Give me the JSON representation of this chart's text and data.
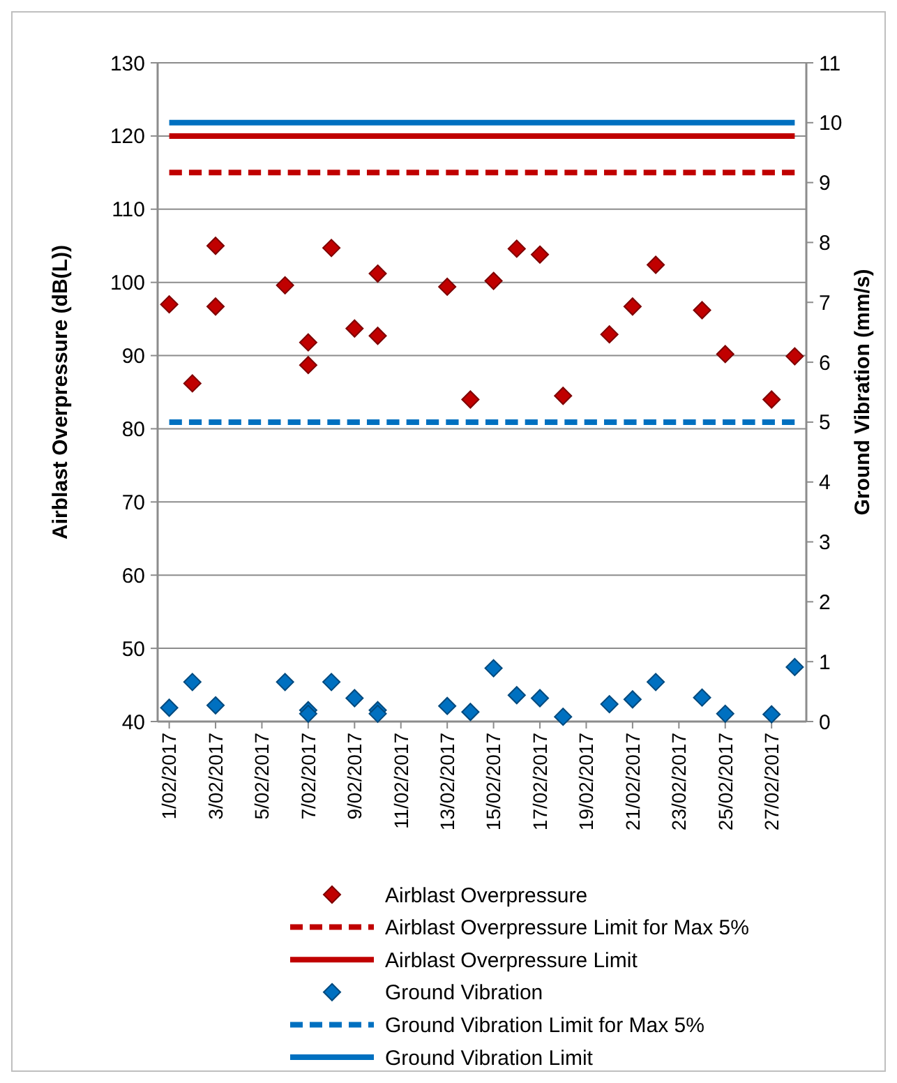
{
  "chart_data": {
    "type": "scatter",
    "ylabel": "Airblast Overpressure (dB(L))",
    "y2label": "Ground Vibration (mm/s)",
    "xlim": [
      "2017-01-31T12:00",
      "2017-02-28T12:00"
    ],
    "xticks": [
      {
        "value": "2017-02-01",
        "label": "1/02/2017"
      },
      {
        "value": "2017-02-03",
        "label": "3/02/2017"
      },
      {
        "value": "2017-02-05",
        "label": "5/02/2017"
      },
      {
        "value": "2017-02-07",
        "label": "7/02/2017"
      },
      {
        "value": "2017-02-09",
        "label": "9/02/2017"
      },
      {
        "value": "2017-02-11",
        "label": "11/02/2017"
      },
      {
        "value": "2017-02-13",
        "label": "13/02/2017"
      },
      {
        "value": "2017-02-15",
        "label": "15/02/2017"
      },
      {
        "value": "2017-02-17",
        "label": "17/02/2017"
      },
      {
        "value": "2017-02-19",
        "label": "19/02/2017"
      },
      {
        "value": "2017-02-21",
        "label": "21/02/2017"
      },
      {
        "value": "2017-02-23",
        "label": "23/02/2017"
      },
      {
        "value": "2017-02-25",
        "label": "25/02/2017"
      },
      {
        "value": "2017-02-27",
        "label": "27/02/2017"
      }
    ],
    "ylim": [
      40,
      130
    ],
    "yticks": [
      40,
      50,
      60,
      70,
      80,
      90,
      100,
      110,
      120,
      130
    ],
    "y2lim": [
      0,
      11
    ],
    "y2ticks": [
      0,
      1,
      2,
      3,
      4,
      5,
      6,
      7,
      8,
      9,
      10,
      11
    ],
    "grid": "y",
    "legend": "bottom",
    "x": [
      "2017-02-01",
      "2017-02-02",
      "2017-02-03",
      "2017-02-03",
      "2017-02-06",
      "2017-02-07",
      "2017-02-07",
      "2017-02-08",
      "2017-02-09",
      "2017-02-10",
      "2017-02-10",
      "2017-02-13",
      "2017-02-14",
      "2017-02-15",
      "2017-02-16",
      "2017-02-17",
      "2017-02-18",
      "2017-02-20",
      "2017-02-21",
      "2017-02-22",
      "2017-02-24",
      "2017-02-25",
      "2017-02-27",
      "2017-02-28"
    ],
    "series": [
      {
        "name": "Airblast Overpressure",
        "marker": "diamond",
        "color": "#c00000",
        "values": [
          97.0,
          86.2,
          105.0,
          96.7,
          99.6,
          91.8,
          88.7,
          104.7,
          93.7,
          101.2,
          92.7,
          99.4,
          84.0,
          100.2,
          104.6,
          103.8,
          84.5,
          92.9,
          96.7,
          102.4,
          96.2,
          90.2,
          84.0,
          89.9
        ]
      },
      {
        "name": "Airblast Overpressure Limit for Max 5%",
        "type": "line",
        "line_style": "dashed",
        "color": "#c00000",
        "x": [
          "2017-02-01",
          "2017-02-28"
        ],
        "values": [
          115,
          115
        ]
      },
      {
        "name": "Airblast Overpressure Limit",
        "type": "line",
        "line_style": "solid",
        "color": "#c00000",
        "x": [
          "2017-02-01",
          "2017-02-28"
        ],
        "values": [
          120,
          120
        ]
      },
      {
        "name": "Ground Vibration",
        "marker": "diamond",
        "axis": "y2",
        "color": "#0070c0",
        "x": [
          "2017-02-01",
          "2017-02-02",
          "2017-02-03",
          "2017-02-06",
          "2017-02-07",
          "2017-02-07",
          "2017-02-08",
          "2017-02-09",
          "2017-02-10",
          "2017-02-10",
          "2017-02-13",
          "2017-02-14",
          "2017-02-15",
          "2017-02-16",
          "2017-02-17",
          "2017-02-18",
          "2017-02-20",
          "2017-02-21",
          "2017-02-22",
          "2017-02-24",
          "2017-02-25",
          "2017-02-27",
          "2017-02-28"
        ],
        "values": [
          0.23,
          0.66,
          0.27,
          0.66,
          0.19,
          0.13,
          0.66,
          0.39,
          0.19,
          0.13,
          0.26,
          0.16,
          0.89,
          0.44,
          0.39,
          0.08,
          0.29,
          0.37,
          0.66,
          0.4,
          0.13,
          0.12,
          0.91
        ]
      },
      {
        "name": "Ground Vibration Limit for Max 5%",
        "type": "line",
        "line_style": "dashed",
        "axis": "y2",
        "color": "#0070c0",
        "x": [
          "2017-02-01",
          "2017-02-28"
        ],
        "values": [
          5,
          5
        ]
      },
      {
        "name": "Ground Vibration Limit",
        "type": "line",
        "line_style": "solid",
        "axis": "y2",
        "color": "#0070c0",
        "x": [
          "2017-02-01",
          "2017-02-28"
        ],
        "values": [
          10,
          10
        ]
      }
    ]
  }
}
